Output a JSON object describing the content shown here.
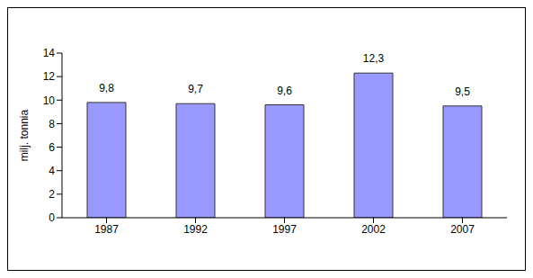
{
  "chart_data": {
    "type": "bar",
    "categories": [
      "1987",
      "1992",
      "1997",
      "2002",
      "2007"
    ],
    "values": [
      9.8,
      9.7,
      9.6,
      12.3,
      9.5
    ],
    "value_labels": [
      "9,8",
      "9,7",
      "9,6",
      "12,3",
      "9,5"
    ],
    "color": "#9999ff",
    "y_label": "milj. tonnia",
    "ylim": [
      0,
      14
    ],
    "yticks": [
      0,
      2,
      4,
      6,
      8,
      10,
      12,
      14
    ],
    "grid": false,
    "data_labels": true
  }
}
